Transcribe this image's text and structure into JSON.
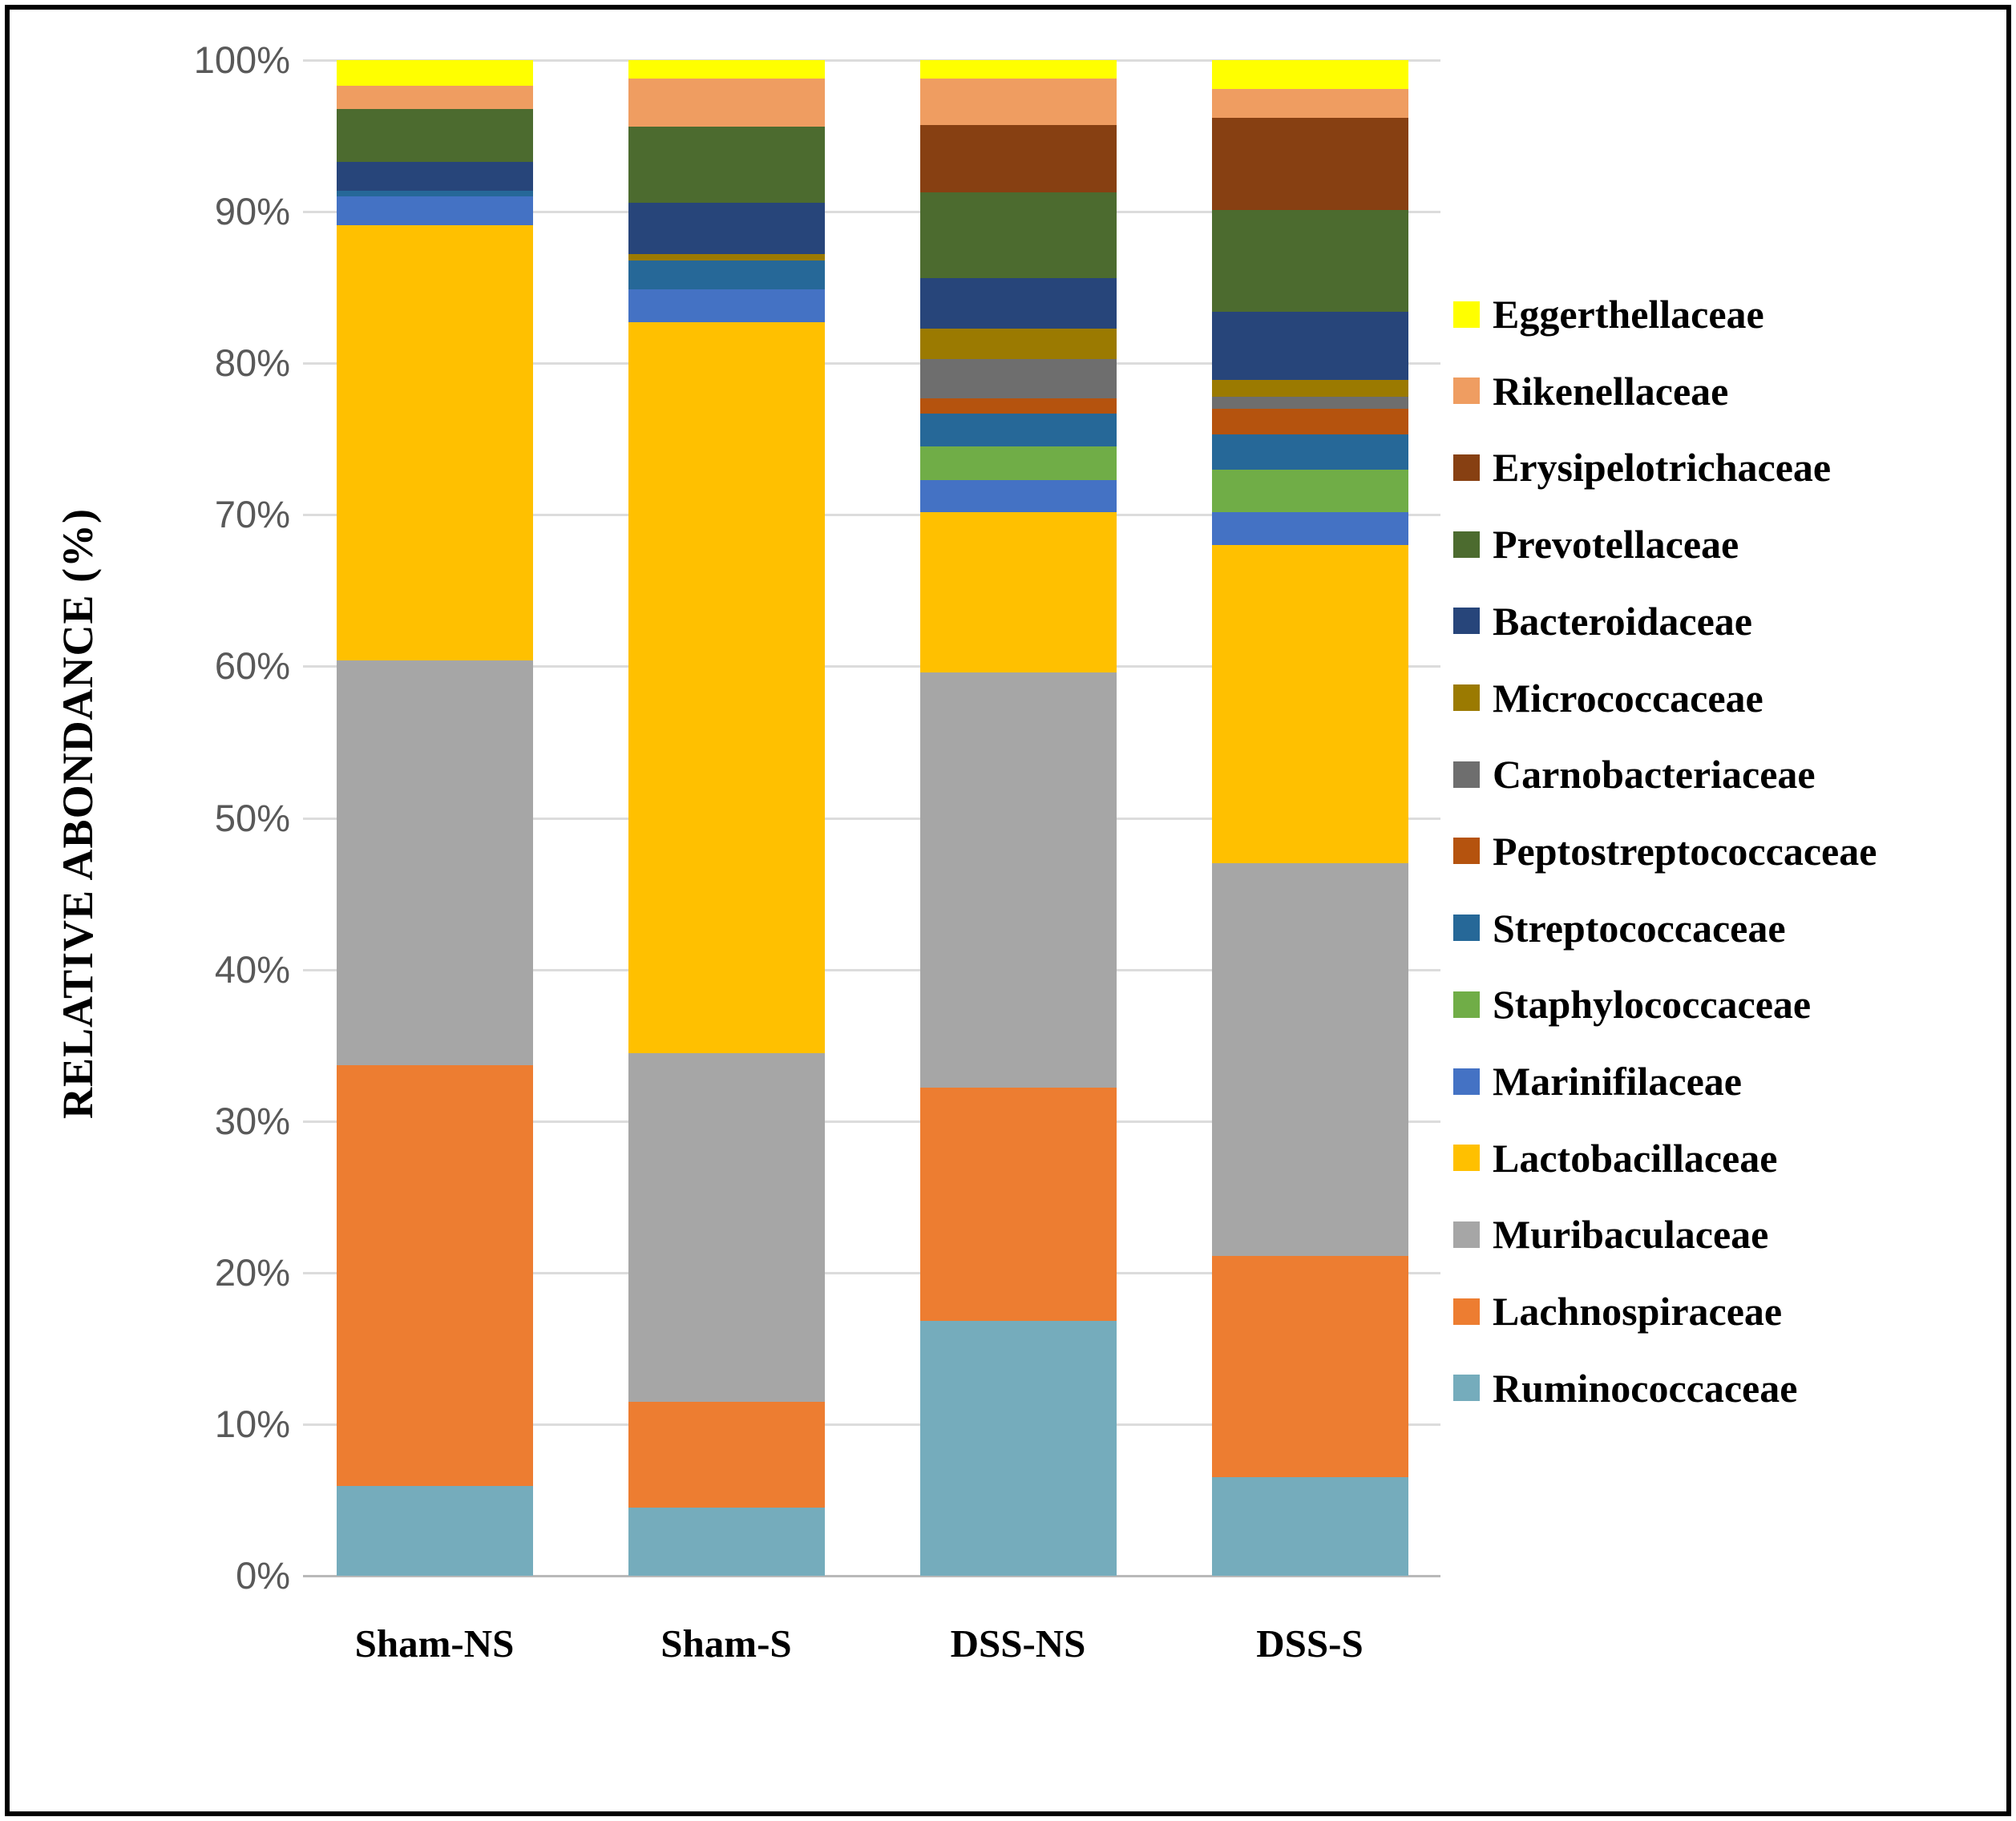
{
  "figure": {
    "description": "Stacked bar chart of gut microbiota family-level relative abundance"
  },
  "y_axis": {
    "title": "RELATIVE ABONDANCE (%)",
    "tick_labels": [
      "100%",
      "90%",
      "80%",
      "70%",
      "60%",
      "50%",
      "40%",
      "30%",
      "20%",
      "10%",
      "0%"
    ],
    "tick_color": "#595959"
  },
  "x_axis": {
    "labels": [
      "Sham-NS",
      "Sham-S",
      "DSS-NS",
      "DSS-S"
    ]
  },
  "style_colors": {
    "gridline": "#dcdcdc",
    "baseline": "#b9b9b9",
    "border": "#000000",
    "background": "#ffffff"
  },
  "chart_data": {
    "type": "bar",
    "stacked": true,
    "title": "",
    "xlabel": "",
    "ylabel": "RELATIVE ABONDANCE (%)",
    "ylim": [
      0,
      100
    ],
    "y_tick_step": 10,
    "grid": true,
    "legend_position": "right",
    "stacking_note": "series listed in legend order; first series is the top segment of each bar, last series is the bottom segment",
    "categories": [
      "Sham-NS",
      "Sham-S",
      "DSS-NS",
      "DSS-S"
    ],
    "series": [
      {
        "name": "Eggerthellaceae",
        "color": "#FFFF00",
        "values": [
          1.7,
          1.2,
          1.2,
          1.9
        ]
      },
      {
        "name": "Rikenellaceae",
        "color": "#EF9D61",
        "values": [
          1.5,
          3.2,
          3.1,
          1.9
        ]
      },
      {
        "name": "Erysipelotrichaceae",
        "color": "#874012",
        "values": [
          0.0,
          0.0,
          4.4,
          6.1
        ]
      },
      {
        "name": "Prevotellaceae",
        "color": "#4C6B2F",
        "values": [
          3.5,
          5.0,
          5.7,
          6.7
        ]
      },
      {
        "name": "Bacteroidaceae",
        "color": "#27457A",
        "values": [
          1.9,
          3.4,
          3.3,
          4.5
        ]
      },
      {
        "name": "Micrococcaceae",
        "color": "#9B7A01",
        "values": [
          0.0,
          0.4,
          2.0,
          1.1
        ]
      },
      {
        "name": "Carnobacteriaceae",
        "color": "#6E6E6E",
        "values": [
          0.0,
          0.0,
          2.6,
          0.8
        ]
      },
      {
        "name": "Peptostreptococcaceae",
        "color": "#B5530E",
        "values": [
          0.0,
          0.0,
          1.0,
          1.7
        ]
      },
      {
        "name": "Streptococcaceae",
        "color": "#266898",
        "values": [
          0.4,
          1.9,
          2.2,
          2.3
        ]
      },
      {
        "name": "Staphylococcaceae",
        "color": "#70AD47",
        "values": [
          0.0,
          0.0,
          2.2,
          2.8
        ]
      },
      {
        "name": "Marinifilaceae",
        "color": "#4472C4",
        "values": [
          1.9,
          2.2,
          2.1,
          2.2
        ]
      },
      {
        "name": "Lactobacillaceae",
        "color": "#FFC000",
        "values": [
          28.7,
          48.2,
          10.6,
          21.0
        ]
      },
      {
        "name": "Muribaculaceae",
        "color": "#A6A6A6",
        "values": [
          26.7,
          23.0,
          27.4,
          25.9
        ]
      },
      {
        "name": "Lachnospiraceae",
        "color": "#ED7D31",
        "values": [
          27.8,
          7.0,
          15.4,
          14.6
        ]
      },
      {
        "name": "Ruminococcaceae",
        "color": "#75ACBC",
        "values": [
          5.9,
          4.5,
          16.8,
          6.5
        ]
      }
    ]
  }
}
